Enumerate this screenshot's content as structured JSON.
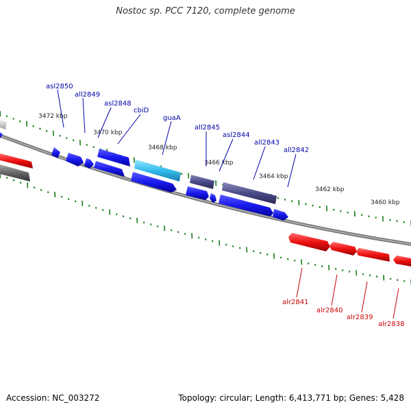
{
  "title": "Nostoc sp. PCC 7120, complete genome",
  "footer": {
    "accession": "Accession: NC_003272",
    "summary": "Topology: circular; Length: 6,413,771 bp; Genes: 5,428"
  },
  "colors": {
    "background": "#ffffff",
    "backbone": "#808080",
    "ticks": "#1a7a1a",
    "reverse_gene": "#1a1aee",
    "reverse_label": "#0000aa",
    "forward_gene": "#ee1111",
    "forward_label": "#cc0000",
    "highlight_gene": "#33bbee",
    "dark_gene": "#4a4a88"
  },
  "scale_labels": [
    "3472 kbp",
    "3470 kbp",
    "3468 kbp",
    "3466 kbp",
    "3464 kbp",
    "3462 kbp",
    "3460 kbp"
  ],
  "genes_reverse_strand": [
    "asl2850",
    "all2849",
    "asl2848",
    "cbiD",
    "guaA",
    "all2845",
    "asl2844",
    "all2843",
    "all2842"
  ],
  "genes_forward_strand": [
    "alr2841",
    "alr2840",
    "alr2839",
    "alr2838"
  ]
}
